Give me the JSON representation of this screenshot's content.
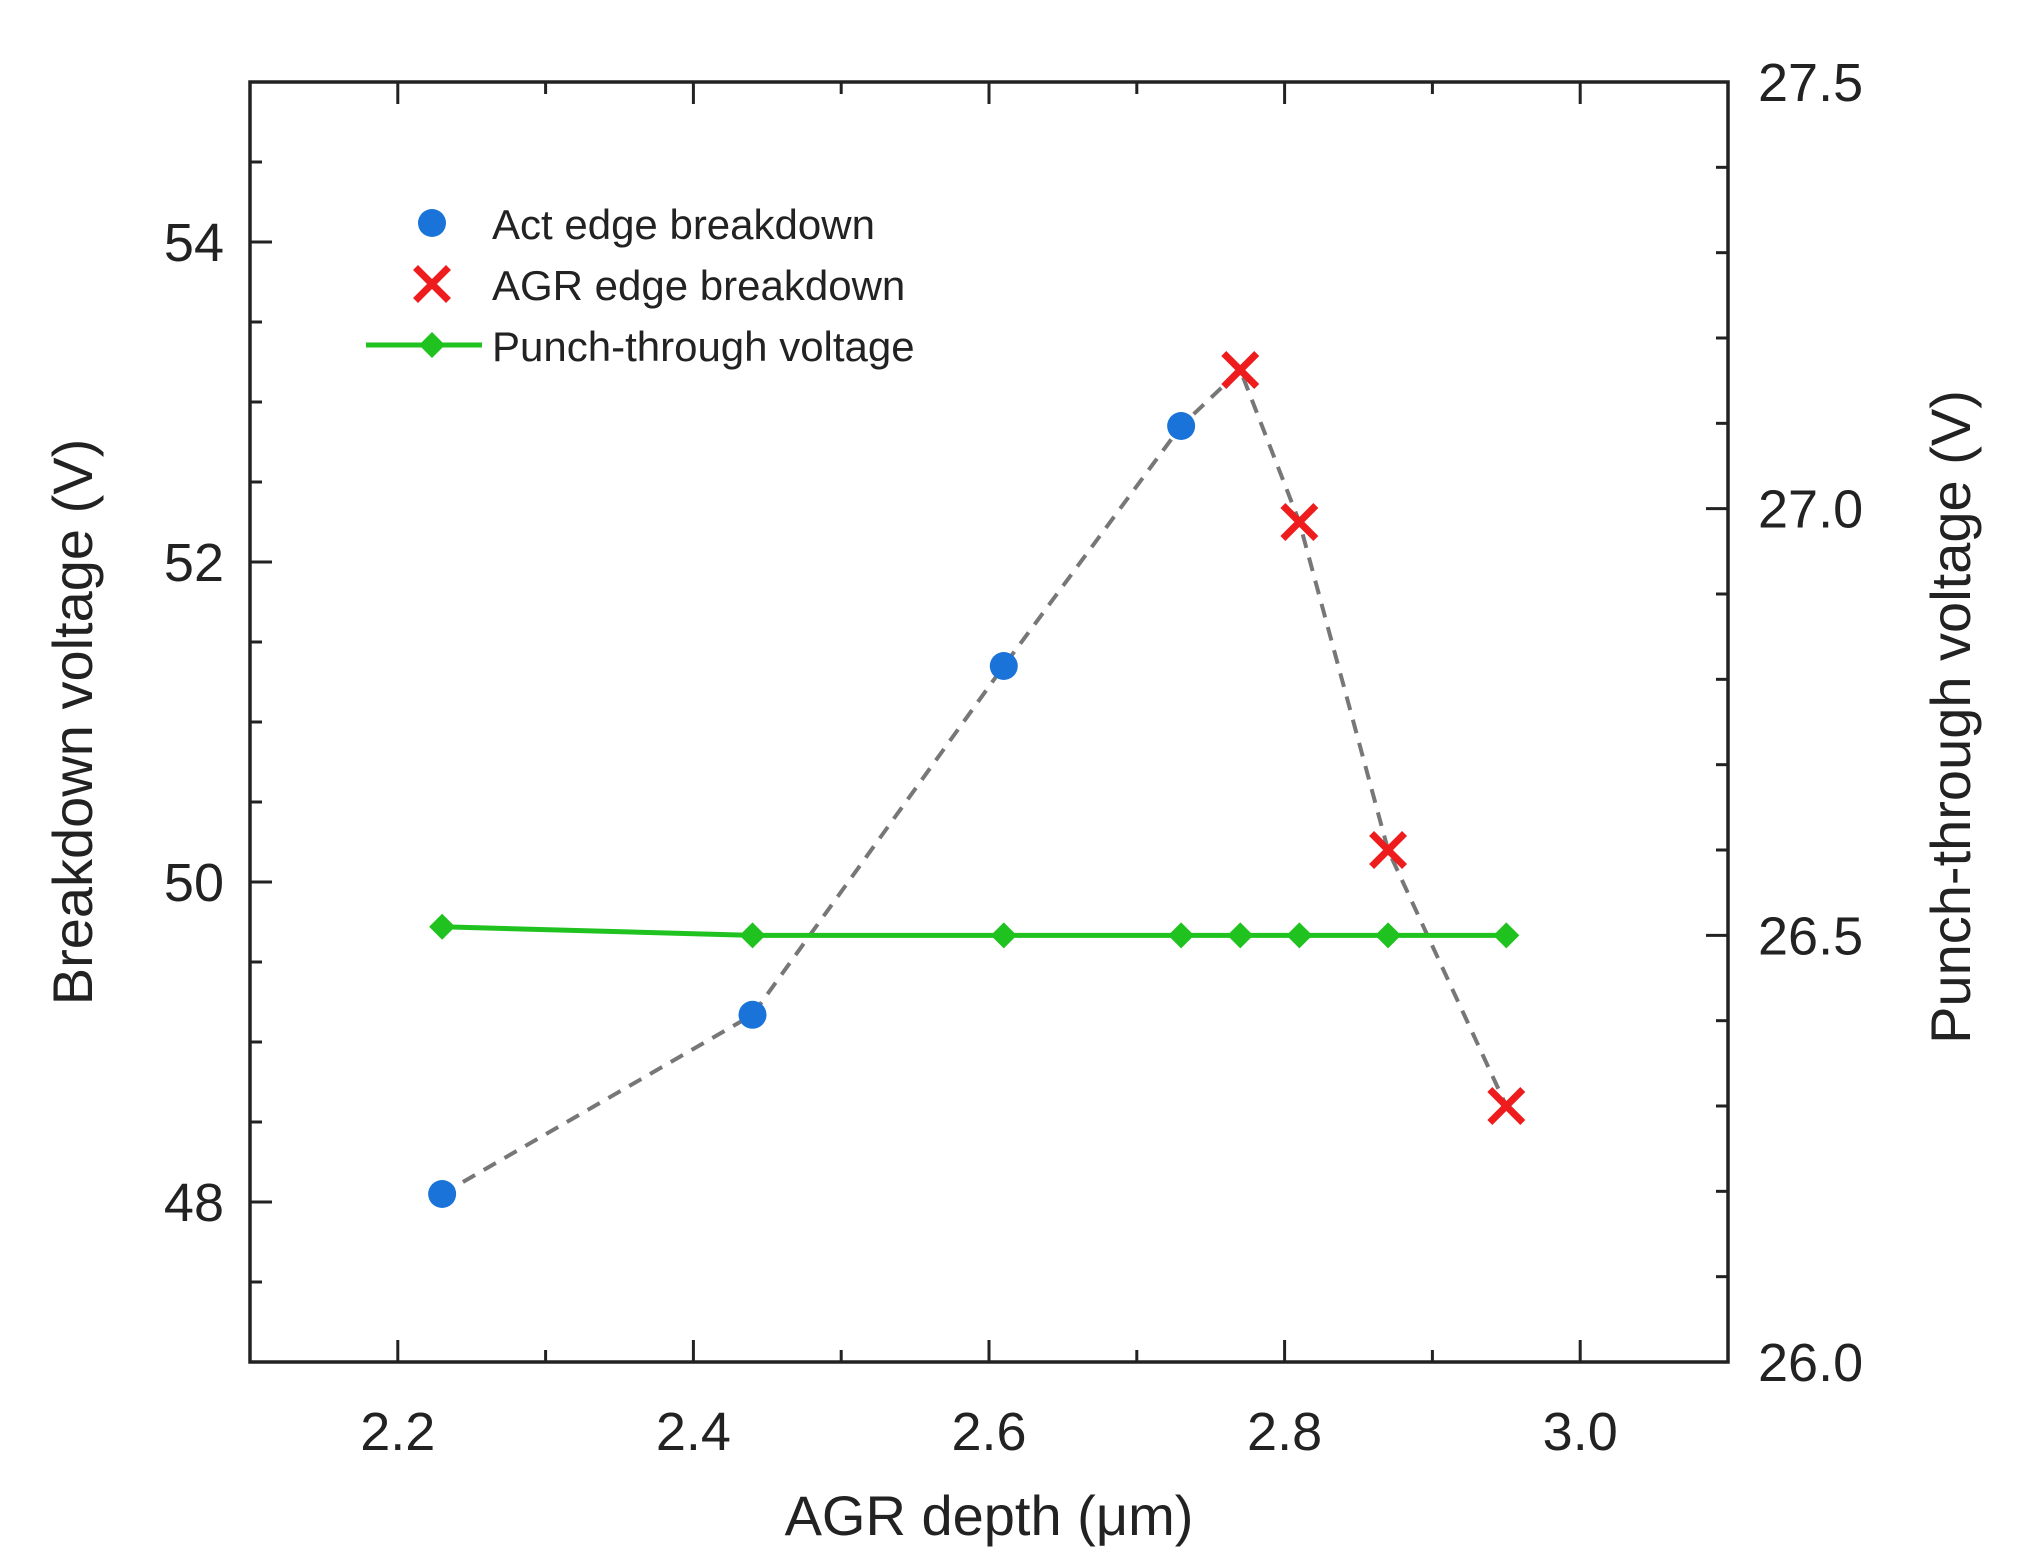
{
  "chart_data": {
    "type": "scatter",
    "title": "",
    "xlabel": "AGR depth (μm)",
    "ylabel_left": "Breakdown voltage (V)",
    "ylabel_right": "Punch-through voltage (V)",
    "xlim": [
      2.1,
      3.1
    ],
    "ylim_left": [
      47.0,
      55.0
    ],
    "ylim_right": [
      26.0,
      27.5
    ],
    "xticks": [
      "2.2",
      "2.4",
      "2.6",
      "2.8",
      "3.0"
    ],
    "yticks_left": [
      "48",
      "50",
      "52",
      "54"
    ],
    "yticks_right": [
      "26.0",
      "26.5",
      "27.0",
      "27.5"
    ],
    "legend_position": "top-left",
    "grid": false,
    "series": [
      {
        "name": "Act edge breakdown",
        "axis": "left",
        "marker": "circle",
        "color": "#1a73d9",
        "x": [
          2.23,
          2.44,
          2.61,
          2.73
        ],
        "y": [
          48.05,
          49.17,
          51.35,
          52.85
        ]
      },
      {
        "name": "AGR edge  breakdown",
        "axis": "left",
        "marker": "x",
        "color": "#ee1c1c",
        "x": [
          2.77,
          2.81,
          2.87,
          2.95
        ],
        "y": [
          53.2,
          52.25,
          50.2,
          48.6
        ]
      },
      {
        "name": "Punch-through voltage",
        "axis": "right",
        "marker": "diamond",
        "line": true,
        "color": "#1fc21f",
        "x": [
          2.23,
          2.44,
          2.61,
          2.73,
          2.77,
          2.81,
          2.87,
          2.95
        ],
        "y": [
          26.51,
          26.5,
          26.5,
          26.5,
          26.5,
          26.5,
          26.5,
          26.5
        ]
      }
    ],
    "connector": {
      "color": "#777777",
      "style": "dashed",
      "x": [
        2.23,
        2.44,
        2.61,
        2.73,
        2.77,
        2.81,
        2.87,
        2.95
      ],
      "y": [
        48.05,
        49.17,
        51.35,
        52.85,
        53.2,
        52.25,
        50.2,
        48.6
      ]
    }
  }
}
